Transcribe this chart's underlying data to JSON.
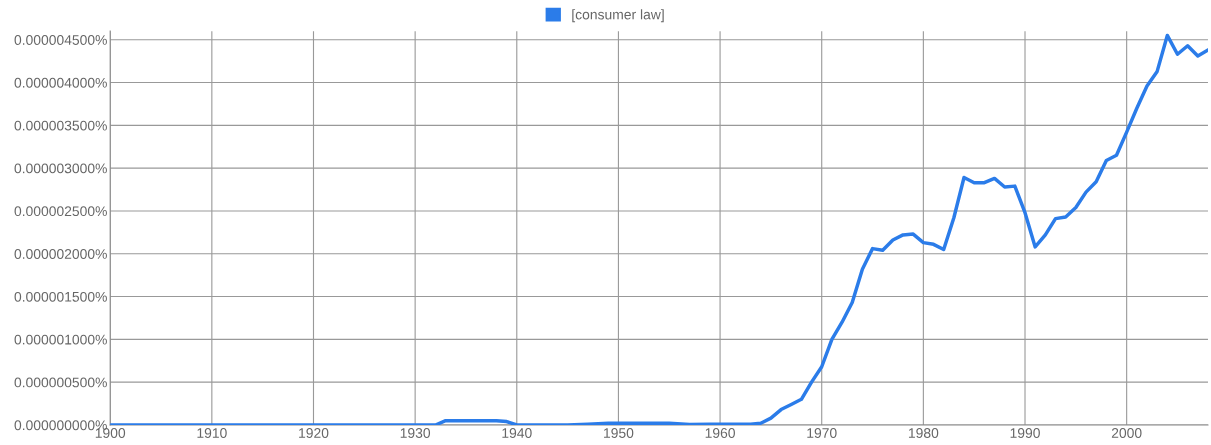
{
  "chart_data": {
    "type": "line",
    "x": [
      1900,
      1931,
      1932,
      1933,
      1938,
      1939,
      1940,
      1945,
      1947,
      1949,
      1955,
      1957,
      1959,
      1963,
      1964,
      1965,
      1966,
      1967,
      1968,
      1969,
      1970,
      1971,
      1972,
      1973,
      1974,
      1975,
      1976,
      1977,
      1978,
      1979,
      1980,
      1981,
      1982,
      1983,
      1984,
      1985,
      1986,
      1987,
      1988,
      1989,
      1990,
      1991,
      1992,
      1993,
      1994,
      1995,
      1996,
      1997,
      1998,
      1999,
      2000,
      2001,
      2002,
      2003,
      2004,
      2005,
      2006,
      2007,
      2008
    ],
    "series": [
      {
        "name": "[consumer law]",
        "color": "#2b7ce9",
        "values": [
          0,
          0,
          0,
          5e-08,
          5e-08,
          4e-08,
          0,
          0,
          1e-08,
          2e-08,
          2e-08,
          5e-09,
          1e-08,
          1e-08,
          2e-08,
          8e-08,
          1.8e-07,
          2.4e-07,
          3e-07,
          5e-07,
          6.8e-07,
          1e-06,
          1.2e-06,
          1.43e-06,
          1.82e-06,
          2.06e-06,
          2.04e-06,
          2.16e-06,
          2.22e-06,
          2.23e-06,
          2.13e-06,
          2.11e-06,
          2.05e-06,
          2.42e-06,
          2.89e-06,
          2.83e-06,
          2.83e-06,
          2.88e-06,
          2.78e-06,
          2.79e-06,
          2.48e-06,
          2.08e-06,
          2.22e-06,
          2.41e-06,
          2.43e-06,
          2.54e-06,
          2.72e-06,
          2.84e-06,
          3.09e-06,
          3.15e-06,
          3.42e-06,
          3.7e-06,
          3.96e-06,
          4.13e-06,
          4.55e-06,
          4.33e-06,
          4.43e-06,
          4.31e-06,
          4.38e-06
        ]
      }
    ],
    "xlim": [
      1900,
      2008
    ],
    "xticks": [
      1900,
      1910,
      1920,
      1930,
      1940,
      1950,
      1960,
      1970,
      1980,
      1990,
      2000
    ],
    "ylim": [
      0,
      4.6e-06
    ],
    "yticks": [
      {
        "value": 0,
        "label": "0.000000000%"
      },
      {
        "value": 5e-07,
        "label": "0.000000500%"
      },
      {
        "value": 1e-06,
        "label": "0.000001000%"
      },
      {
        "value": 1.5e-06,
        "label": "0.000001500%"
      },
      {
        "value": 2e-06,
        "label": "0.000002000%"
      },
      {
        "value": 2.5e-06,
        "label": "0.000002500%"
      },
      {
        "value": 3e-06,
        "label": "0.000003000%"
      },
      {
        "value": 3.5e-06,
        "label": "0.000003500%"
      },
      {
        "value": 4e-06,
        "label": "0.000004000%"
      },
      {
        "value": 4.5e-06,
        "label": "0.000004500%"
      }
    ],
    "grid": true,
    "legend": "top",
    "marker": "none",
    "line_style": "solid"
  }
}
